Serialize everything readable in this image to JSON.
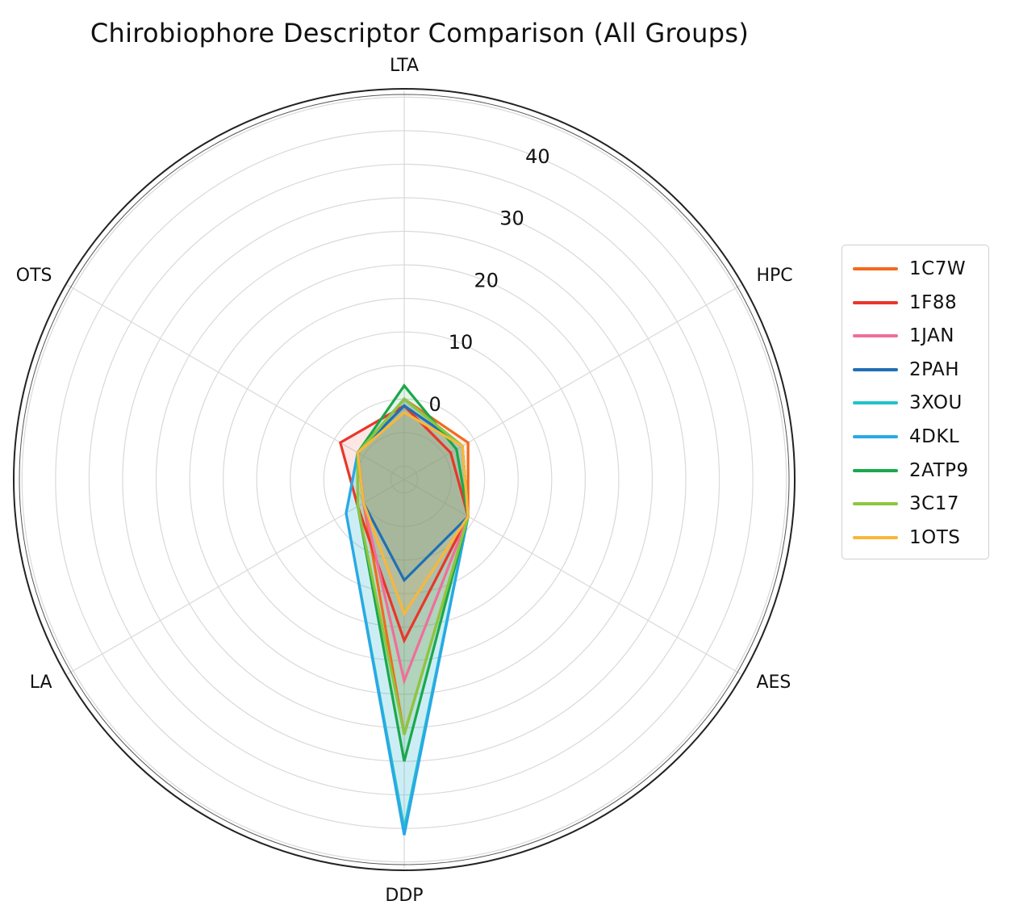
{
  "chart_data": {
    "type": "radar",
    "title": "Chirobiophore Descriptor Comparison (All Groups)",
    "axes": [
      "LTA",
      "HPC",
      "AES",
      "DDP",
      "LA",
      "OTS"
    ],
    "radial_ticks": [
      "0",
      "10",
      "20",
      "30",
      "40"
    ],
    "rlim": [
      -12,
      46
    ],
    "grid": true,
    "legend_position": "right",
    "series": [
      {
        "name": "1C7W",
        "color": "#f26b1d",
        "values": [
          0,
          -1,
          -1,
          26,
          -5,
          -4
        ]
      },
      {
        "name": "1F88",
        "color": "#e8362a",
        "values": [
          -1,
          -4,
          -1,
          12,
          -4,
          -1
        ]
      },
      {
        "name": "1JAN",
        "color": "#f06e9a",
        "values": [
          0,
          -2,
          -1,
          18,
          -5,
          -4
        ]
      },
      {
        "name": "2PAH",
        "color": "#1f6fb5",
        "values": [
          -1,
          -2,
          -1,
          3,
          -5,
          -4
        ]
      },
      {
        "name": "3XOU",
        "color": "#22c3c9",
        "values": [
          0,
          -2,
          -1,
          40,
          -2,
          -4
        ]
      },
      {
        "name": "4DKL",
        "color": "#2aa8e6",
        "values": [
          0,
          -2,
          -1,
          41,
          -2,
          -4
        ]
      },
      {
        "name": "2ATP9",
        "color": "#1aa84b",
        "values": [
          2,
          -3,
          -1,
          30,
          -4,
          -4
        ]
      },
      {
        "name": "3C17",
        "color": "#8cc63f",
        "values": [
          0,
          -2,
          -1,
          26,
          -4,
          -4
        ]
      },
      {
        "name": "1OTS",
        "color": "#f8b73a",
        "values": [
          -2,
          -2,
          -1,
          8,
          -5,
          -4
        ]
      }
    ]
  }
}
